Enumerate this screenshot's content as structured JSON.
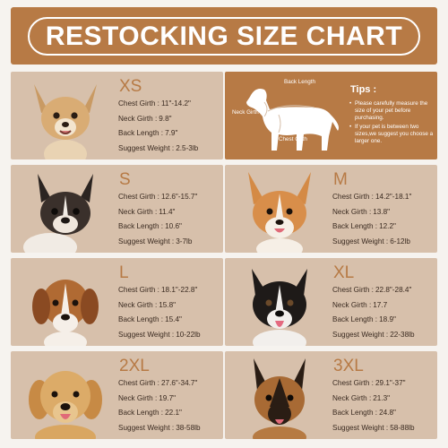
{
  "title": "RESTOCKING SIZE CHART",
  "tips": {
    "title": "Tips :",
    "items": [
      "Please carefully measure the size of your pet before purchasing.",
      "If your pet is between two sizes,we suggest you choose a larger one."
    ],
    "diagram_labels": {
      "back_length": "Back Length",
      "neck_girth": "Neck Girth",
      "chest_girth": "Chest Girth"
    }
  },
  "labels": {
    "chest": "Chest Girth :",
    "neck": "Neck Girth :",
    "back": "Back Length :",
    "weight": "Suggest Weight :"
  },
  "sizes": [
    {
      "size": "XS",
      "chest": "11\"-14.2\"",
      "neck": "9.8\"",
      "back": "7.9\"",
      "weight": "2.5-3lb"
    },
    {
      "size": "S",
      "chest": "12.6\"-15.7\"",
      "neck": "11.4\"",
      "back": "10.6\"",
      "weight": "3-7lb"
    },
    {
      "size": "M",
      "chest": "14.2\"-18.1\"",
      "neck": "13.8\"",
      "back": "12.2\"",
      "weight": "6-12lb"
    },
    {
      "size": "L",
      "chest": "18.1\"-22.8\"",
      "neck": "15.8\"",
      "back": "15.4\"",
      "weight": "10-22lb"
    },
    {
      "size": "XL",
      "chest": "22.8\"-28.4\"",
      "neck": "17.7",
      "back": "18.9\"",
      "weight": "22-38lb"
    },
    {
      "size": "2XL",
      "chest": "27.6\"-34.7\"",
      "neck": "19.7\"",
      "back": "22.1\"",
      "weight": "38-58lb"
    },
    {
      "size": "3XL",
      "chest": "29.1\"-37\"",
      "neck": "21.3\"",
      "back": "24.8\"",
      "weight": "58-88lb"
    }
  ],
  "colors": {
    "brand": "#b77a45",
    "card": "#d7c0ab",
    "background": "#f6f3ef"
  }
}
